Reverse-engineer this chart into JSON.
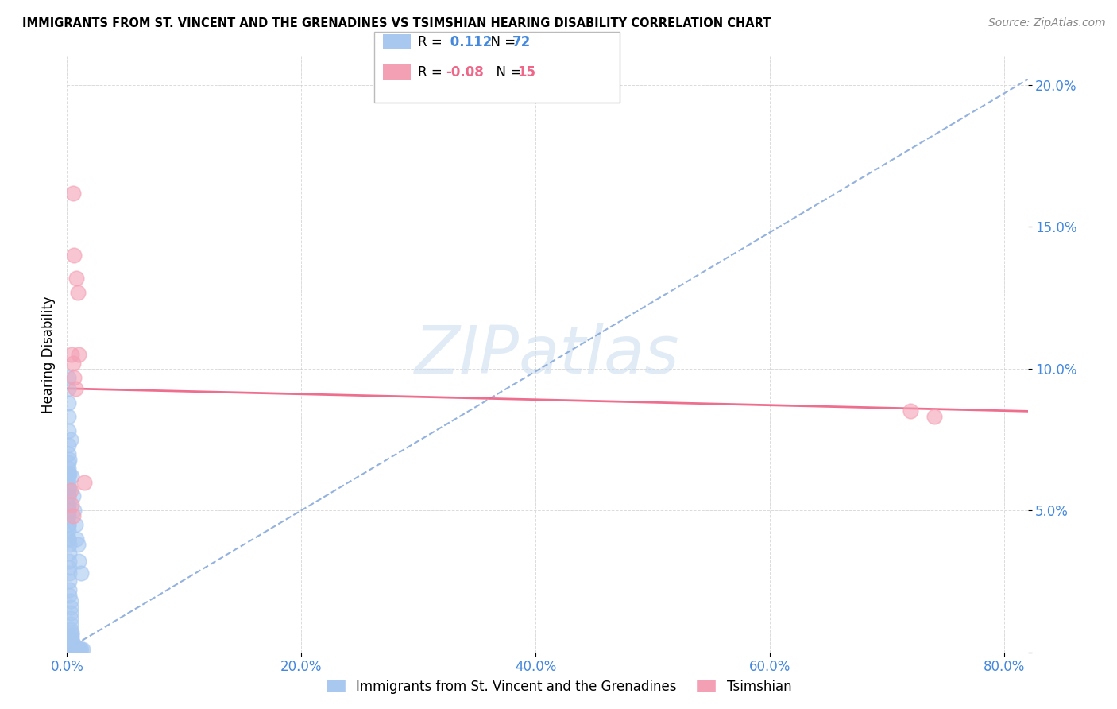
{
  "title": "IMMIGRANTS FROM ST. VINCENT AND THE GRENADINES VS TSIMSHIAN HEARING DISABILITY CORRELATION CHART",
  "source": "Source: ZipAtlas.com",
  "ylabel": "Hearing Disability",
  "xlim": [
    0,
    0.82
  ],
  "ylim": [
    0,
    0.21
  ],
  "xticks": [
    0.0,
    0.2,
    0.4,
    0.6,
    0.8
  ],
  "yticks": [
    0.0,
    0.05,
    0.1,
    0.15,
    0.2
  ],
  "xtick_labels": [
    "0.0%",
    "20.0%",
    "40.0%",
    "60.0%",
    "80.0%"
  ],
  "ytick_labels": [
    "0.0%",
    "5.0%",
    "10.0%",
    "15.0%",
    "20.0%"
  ],
  "blue_R": 0.112,
  "blue_N": 72,
  "pink_R": -0.08,
  "pink_N": 15,
  "blue_color": "#A8C8F0",
  "pink_color": "#F4A0B4",
  "blue_trend_color": "#88AADA",
  "pink_trend_color": "#EE6688",
  "tick_color": "#4488DD",
  "watermark_color": "#C8DCF0",
  "blue_scatter_x": [
    0.003,
    0.004,
    0.005,
    0.006,
    0.007,
    0.008,
    0.009,
    0.01,
    0.012,
    0.001,
    0.001,
    0.001,
    0.001,
    0.001,
    0.001,
    0.001,
    0.001,
    0.001,
    0.001,
    0.002,
    0.002,
    0.002,
    0.002,
    0.002,
    0.002,
    0.002,
    0.002,
    0.003,
    0.003,
    0.003,
    0.003,
    0.003,
    0.003,
    0.004,
    0.004,
    0.004,
    0.004,
    0.004,
    0.005,
    0.005,
    0.005,
    0.005,
    0.006,
    0.006,
    0.006,
    0.007,
    0.007,
    0.008,
    0.008,
    0.009,
    0.009,
    0.01,
    0.011,
    0.012,
    0.013,
    0.001,
    0.001,
    0.001,
    0.001,
    0.001,
    0.002,
    0.002,
    0.002,
    0.001,
    0.001,
    0.001,
    0.001,
    0.001,
    0.001,
    0.001,
    0.001,
    0.001
  ],
  "blue_scatter_y": [
    0.075,
    0.062,
    0.055,
    0.05,
    0.045,
    0.04,
    0.038,
    0.032,
    0.028,
    0.065,
    0.062,
    0.058,
    0.055,
    0.052,
    0.05,
    0.048,
    0.045,
    0.043,
    0.04,
    0.038,
    0.035,
    0.032,
    0.03,
    0.028,
    0.025,
    0.022,
    0.02,
    0.018,
    0.016,
    0.014,
    0.012,
    0.01,
    0.008,
    0.007,
    0.006,
    0.005,
    0.004,
    0.003,
    0.003,
    0.002,
    0.002,
    0.002,
    0.002,
    0.002,
    0.001,
    0.002,
    0.001,
    0.002,
    0.001,
    0.001,
    0.001,
    0.001,
    0.001,
    0.001,
    0.001,
    0.097,
    0.093,
    0.088,
    0.083,
    0.078,
    0.068,
    0.063,
    0.058,
    0.073,
    0.07,
    0.067,
    0.063,
    0.06,
    0.055,
    0.05,
    0.045,
    0.04
  ],
  "pink_scatter_x": [
    0.005,
    0.006,
    0.008,
    0.009,
    0.01,
    0.004,
    0.005,
    0.006,
    0.007,
    0.003,
    0.004,
    0.005,
    0.015,
    0.72,
    0.74
  ],
  "pink_scatter_y": [
    0.162,
    0.14,
    0.132,
    0.127,
    0.105,
    0.105,
    0.102,
    0.097,
    0.093,
    0.057,
    0.052,
    0.048,
    0.06,
    0.085,
    0.083
  ],
  "blue_trend_x0": 0.0,
  "blue_trend_y0": 0.001,
  "blue_trend_x1": 0.82,
  "blue_trend_y1": 0.202,
  "pink_trend_x0": 0.0,
  "pink_trend_y0": 0.093,
  "pink_trend_x1": 0.82,
  "pink_trend_y1": 0.085
}
